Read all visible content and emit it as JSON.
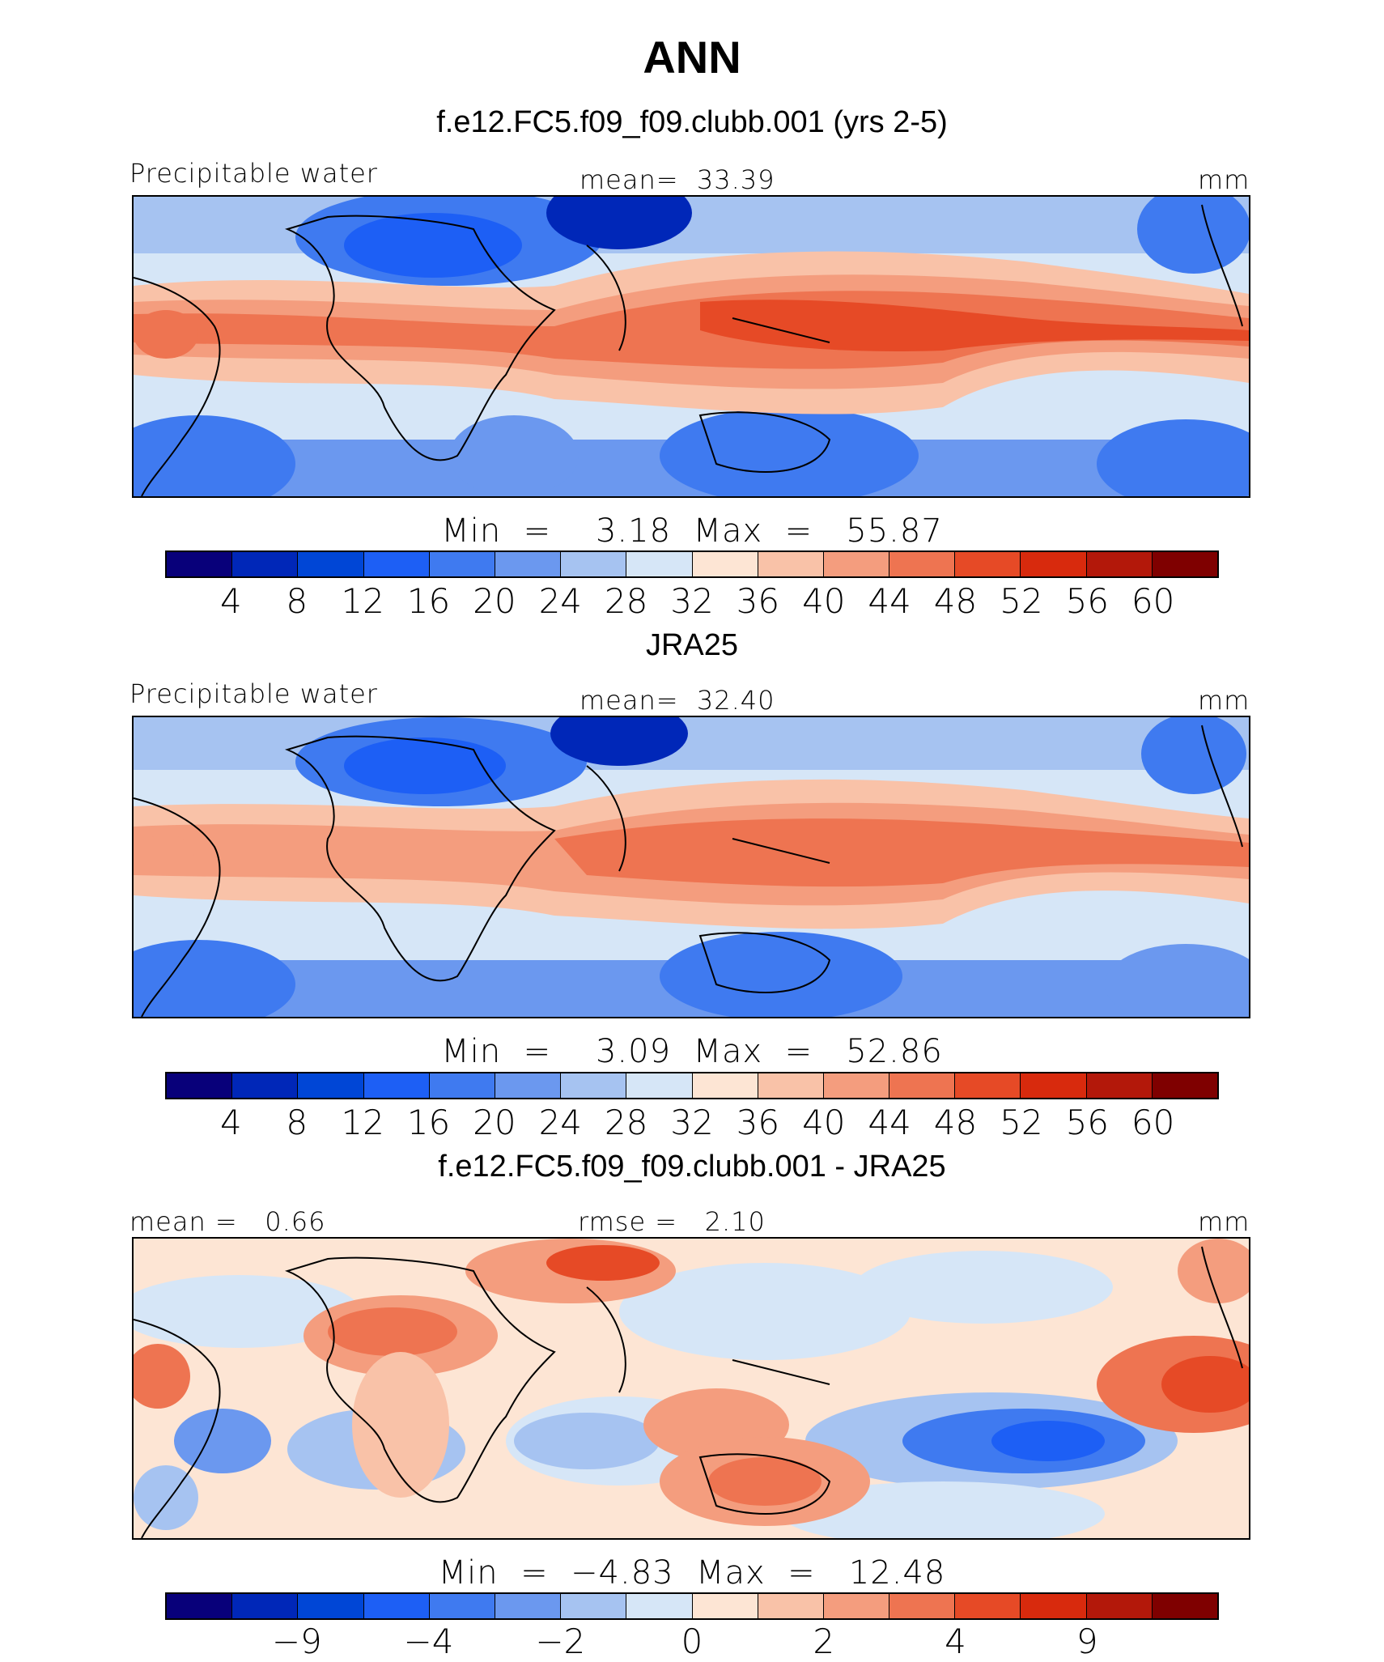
{
  "title": "ANN",
  "colors": {
    "full_palette": [
      "#08007a",
      "#0027b8",
      "#0046d6",
      "#1d5ff5",
      "#3f7af0",
      "#6b98ef",
      "#a6c3f1",
      "#d6e6f7",
      "#fde5d4",
      "#f9c2a8",
      "#f49d7e",
      "#ee7451",
      "#e64a26",
      "#d82a0d",
      "#b3180a",
      "#7f0000"
    ]
  },
  "panels": [
    {
      "id": "model",
      "title": "f.e12.FC5.f09_f09.clubb.001 (yrs 2-5)",
      "left_label": "Precipitable water",
      "center_label": "mean=  33.39",
      "units": "mm",
      "minmax": "Min  =    3.18  Max  =   55.87",
      "ticks": [
        "4",
        "8",
        "12",
        "16",
        "20",
        "24",
        "28",
        "32",
        "36",
        "40",
        "44",
        "48",
        "52",
        "56",
        "60"
      ],
      "stats": {
        "mean": 33.39,
        "min": 3.18,
        "max": 55.87
      }
    },
    {
      "id": "obs",
      "title": "JRA25",
      "left_label": "Precipitable water",
      "center_label": "mean=  32.40",
      "units": "mm",
      "minmax": "Min  =    3.09  Max  =   52.86",
      "ticks": [
        "4",
        "8",
        "12",
        "16",
        "20",
        "24",
        "28",
        "32",
        "36",
        "40",
        "44",
        "48",
        "52",
        "56",
        "60"
      ],
      "stats": {
        "mean": 32.4,
        "min": 3.09,
        "max": 52.86
      }
    },
    {
      "id": "diff",
      "title": "f.e12.FC5.f09_f09.clubb.001 - JRA25",
      "left_label": "mean =   0.66",
      "center_label": "rmse =   2.10",
      "units": "mm",
      "minmax": "Min  =  −4.83  Max  =   12.48",
      "ticks": [
        "−9",
        "−4",
        "−2",
        "0",
        "2",
        "4",
        "9"
      ],
      "stats": {
        "mean": 0.66,
        "rmse": 2.1,
        "min": -4.83,
        "max": 12.48
      }
    }
  ]
}
